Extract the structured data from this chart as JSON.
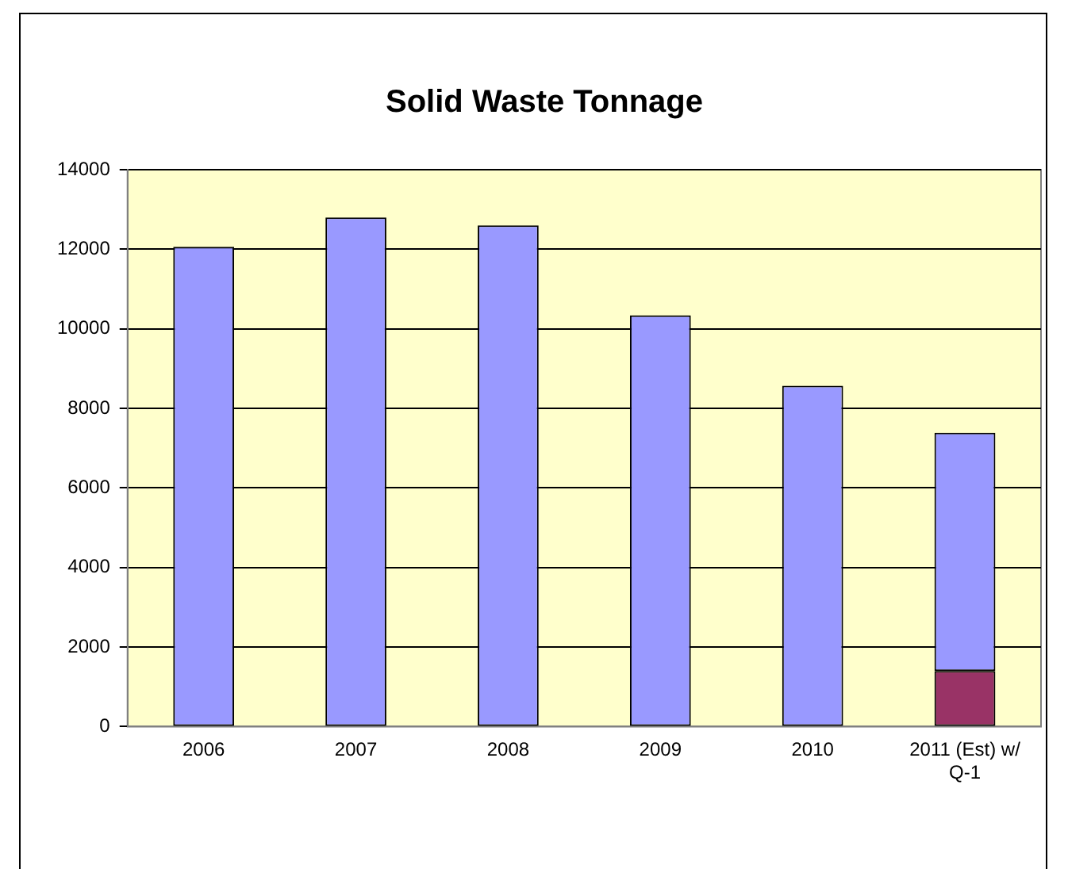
{
  "chart_data": {
    "type": "bar",
    "title": "Solid Waste Tonnage",
    "stacked": true,
    "categories": [
      "2006",
      "2007",
      "2008",
      "2009",
      "2010",
      "2011 (Est)  w/ Q-1"
    ],
    "series": [
      {
        "color": "#993366",
        "values": [
          null,
          null,
          null,
          null,
          null,
          1400
        ]
      },
      {
        "color": "#9999ff",
        "values": [
          12060,
          12800,
          12600,
          10340,
          8570,
          5990
        ]
      }
    ],
    "ylim": [
      0,
      14000
    ],
    "yticks": [
      0,
      2000,
      4000,
      6000,
      8000,
      10000,
      12000,
      14000
    ],
    "grid": "y",
    "legend": false
  }
}
